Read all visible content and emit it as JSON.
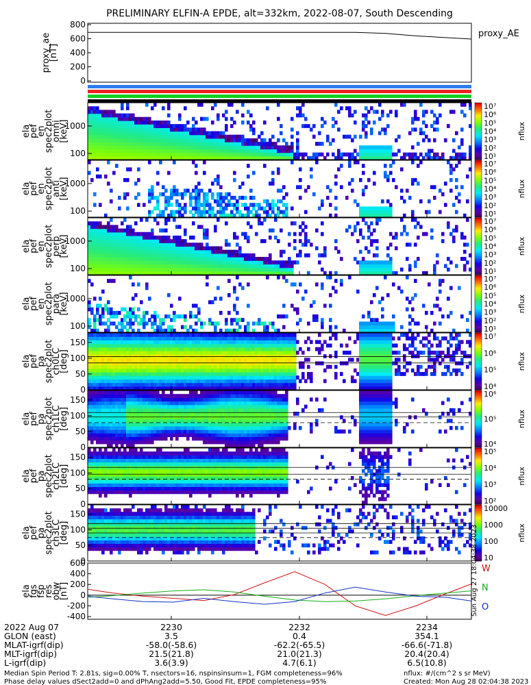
{
  "title": "PRELIMINARY ELFIN-A EPDE, alt=332km, 2022-08-07, South Descending",
  "colors": {
    "blue_bar": "#2e7cf0",
    "red_bar": "#ee2020",
    "green_bar": "#10d020",
    "black_bar": "#000000",
    "bw": "#d01010",
    "bn": "#10b010",
    "bo": "#1030c0"
  },
  "proxy": {
    "ylabel": [
      "proxy_ae",
      "[nT]"
    ],
    "legend": "proxy_AE",
    "ticks": [
      "800",
      "600",
      "400",
      "200",
      "0"
    ]
  },
  "spectro_panels": [
    {
      "ylabel": [
        "ela",
        "pef",
        "en",
        "spec2plot",
        "omni",
        "[keV]"
      ],
      "ticks": [
        "1000",
        "100"
      ],
      "cbar_ticks": [
        "10⁷",
        "10⁶",
        "10⁵",
        "10⁴",
        "10³",
        "10²",
        "10¹"
      ],
      "cbar_label": "nflux"
    },
    {
      "ylabel": [
        "ela",
        "pef",
        "en",
        "spec2plot",
        "anti",
        "[keV]"
      ],
      "ticks": [
        "1000",
        "100"
      ],
      "cbar_ticks": [
        "10⁷",
        "10⁶",
        "10⁵",
        "10⁴",
        "10³",
        "10²",
        "10¹"
      ],
      "cbar_label": "nflux"
    },
    {
      "ylabel": [
        "ela",
        "pef",
        "en",
        "spec2plot",
        "perp",
        "[keV]"
      ],
      "ticks": [
        "1000",
        "100"
      ],
      "cbar_ticks": [
        "10⁷",
        "10⁶",
        "10⁵",
        "10⁴",
        "10³",
        "10²",
        "10¹"
      ],
      "cbar_label": "nflux"
    },
    {
      "ylabel": [
        "ela",
        "pef",
        "en",
        "spec2plot",
        "para",
        "[keV]"
      ],
      "ticks": [
        "1000",
        "100"
      ],
      "cbar_ticks": [
        "10⁷",
        "10⁶",
        "10⁵",
        "10⁴",
        "10³",
        "10²",
        "10¹"
      ],
      "cbar_label": "nflux"
    },
    {
      "ylabel": [
        "ela",
        "pef",
        "pa",
        "spec2plot",
        "ch0LC",
        "[deg]"
      ],
      "ticks": [
        "150",
        "100",
        "50",
        "0"
      ],
      "cbar_ticks": [
        "10⁷",
        "10⁶",
        "10⁵",
        "10⁴"
      ],
      "cbar_label": "nflux"
    },
    {
      "ylabel": [
        "ela",
        "pef",
        "pa",
        "spec2plot",
        "ch1LC",
        "[deg]"
      ],
      "ticks": [
        "150",
        "100",
        "50",
        "0"
      ],
      "cbar_ticks": [
        "10⁶",
        "10⁵",
        "10⁴"
      ],
      "cbar_label": "nflux"
    },
    {
      "ylabel": [
        "ela",
        "pef",
        "pa",
        "spec2plot",
        "ch2LC",
        "[deg]"
      ],
      "ticks": [
        "150",
        "100",
        "50",
        "0"
      ],
      "cbar_ticks": [
        "10⁵",
        "10⁴",
        "10³",
        "10²"
      ],
      "cbar_label": "nflux"
    },
    {
      "ylabel": [
        "ela",
        "pef",
        "pa",
        "spec2plot",
        "ch3LC",
        "[deg]"
      ],
      "ticks": [
        "150",
        "100",
        "50",
        "0"
      ],
      "cbar_ticks": [
        "10000",
        "1000",
        "100",
        "10"
      ],
      "cbar_label": "nflux"
    }
  ],
  "fgs": {
    "ylabel": [
      "ela",
      "fgs",
      "fsp",
      "res",
      "obw",
      "[nT]"
    ],
    "ticks": [
      "600",
      "400",
      "200",
      "0",
      "-200",
      "-400"
    ],
    "legend": [
      "W",
      "N",
      "O"
    ],
    "stamp": "Sun Aug 27 18:04:38 2023"
  },
  "footer": {
    "row_labels": [
      "2022 Aug 07",
      "GLON (east)",
      "MLAT-igrf(dip)",
      "MLT-igrf(dip)",
      "L-igrf(dip)"
    ],
    "columns": [
      [
        "2230",
        "3.5",
        "-58.0(-58.6)",
        "21.5(21.8)",
        "3.6(3.9)"
      ],
      [
        "2232",
        "0.4",
        "-62.2(-65.5)",
        "21.0(21.3)",
        "4.7(6.1)"
      ],
      [
        "2234",
        "354.1",
        "-66.6(-71.8)",
        "20.4(20.4)",
        "6.5(10.8)"
      ]
    ],
    "note1": "Median Spin Period T: 2.81s, sig=0.00% T, nsectors=16, nspinsinsum=1, FGM completeness=96%",
    "note2": "Phase delay values dSect2add=0 and dPhAng2add=5.50, Good Fit, EPDE completeness=95%",
    "units": "nflux: #/(cm^2 s sr MeV)",
    "created": "Created: Mon Aug 28 02:04:38 2023"
  },
  "chart_data": [
    {
      "type": "line",
      "title": "PRELIMINARY ELFIN-A EPDE, alt=332km, 2022-08-07, South Descending",
      "x": [
        "22:28:30",
        "22:29:00",
        "22:30:00",
        "22:31:00",
        "22:32:00",
        "22:33:00",
        "22:33:30",
        "22:34:00",
        "22:34:55"
      ],
      "series": [
        {
          "name": "proxy_AE",
          "values": [
            690,
            690,
            690,
            690,
            690,
            690,
            675,
            640,
            595
          ]
        }
      ],
      "ylim": [
        0,
        800
      ],
      "ylabel": "proxy_ae [nT]"
    },
    {
      "type": "heatmap",
      "ylabel": "ela pef en spec2plot omni [keV]",
      "yscale": "log",
      "ylim": [
        60,
        7000
      ],
      "clim": [
        10,
        10000000
      ],
      "clabel": "nflux"
    },
    {
      "type": "heatmap",
      "ylabel": "ela pef en spec2plot anti [keV]",
      "yscale": "log",
      "ylim": [
        60,
        7000
      ],
      "clim": [
        10,
        10000000
      ],
      "clabel": "nflux"
    },
    {
      "type": "heatmap",
      "ylabel": "ela pef en spec2plot perp [keV]",
      "yscale": "log",
      "ylim": [
        60,
        7000
      ],
      "clim": [
        10,
        10000000
      ],
      "clabel": "nflux"
    },
    {
      "type": "heatmap",
      "ylabel": "ela pef en spec2plot para [keV]",
      "yscale": "log",
      "ylim": [
        60,
        7000
      ],
      "clim": [
        10,
        10000000
      ],
      "clabel": "nflux"
    },
    {
      "type": "heatmap",
      "ylabel": "ela pef pa spec2plot ch0LC [deg]",
      "ylim": [
        0,
        180
      ],
      "clim": [
        3000,
        10000000
      ],
      "clabel": "nflux"
    },
    {
      "type": "heatmap",
      "ylabel": "ela pef pa spec2plot ch1LC [deg]",
      "ylim": [
        0,
        180
      ],
      "clim": [
        3000,
        3000000
      ],
      "clabel": "nflux"
    },
    {
      "type": "heatmap",
      "ylabel": "ela pef pa spec2plot ch2LC [deg]",
      "ylim": [
        0,
        180
      ],
      "clim": [
        100,
        500000
      ],
      "clabel": "nflux"
    },
    {
      "type": "heatmap",
      "ylabel": "ela pef pa spec2plot ch3LC [deg]",
      "ylim": [
        0,
        180
      ],
      "clim": [
        10,
        10000
      ],
      "clabel": "nflux"
    },
    {
      "type": "line",
      "ylabel": "ela fgs fsp res obw [nT]",
      "ylim": [
        -450,
        600
      ],
      "x": [
        "22:28:30",
        "22:29:00",
        "22:29:30",
        "22:30:00",
        "22:30:30",
        "22:31:00",
        "22:31:30",
        "22:32:00",
        "22:32:30",
        "22:33:00",
        "22:33:30",
        "22:34:00",
        "22:34:30",
        "22:34:55"
      ],
      "series": [
        {
          "name": "W",
          "values": [
            110,
            40,
            -20,
            -60,
            -100,
            10,
            230,
            440,
            200,
            -200,
            -380,
            -200,
            30,
            210
          ]
        },
        {
          "name": "N",
          "values": [
            -40,
            -10,
            40,
            80,
            100,
            60,
            -20,
            -90,
            -120,
            -110,
            -70,
            -10,
            40,
            80
          ]
        },
        {
          "name": "O",
          "values": [
            -20,
            -70,
            -120,
            -130,
            -60,
            -120,
            -170,
            -120,
            40,
            150,
            60,
            -20,
            -40,
            -110
          ]
        }
      ]
    }
  ]
}
